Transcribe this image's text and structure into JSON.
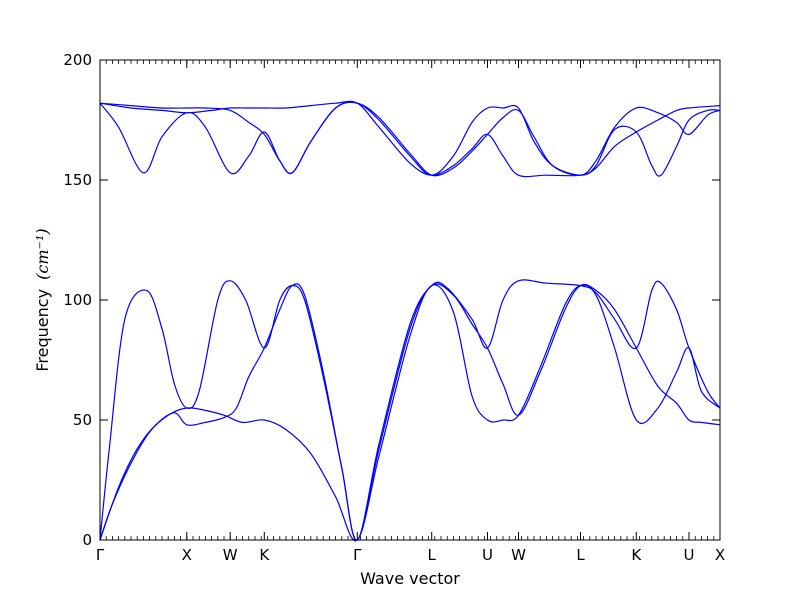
{
  "chart_data": {
    "type": "line",
    "title": "",
    "xlabel": "Wave vector",
    "ylabel": "Frequency",
    "ylabel_unit": "(cm⁻¹)",
    "ylim": [
      0,
      200
    ],
    "y_ticks": [
      0,
      50,
      100,
      150,
      200
    ],
    "x_range": [
      0,
      1
    ],
    "grid": false,
    "legend": "none",
    "line_color": "#0000ff",
    "high_symmetry_points": [
      {
        "label": "Γ",
        "x": 0.0
      },
      {
        "label": "X",
        "x": 0.14
      },
      {
        "label": "W",
        "x": 0.21
      },
      {
        "label": "K",
        "x": 0.265
      },
      {
        "label": "Γ",
        "x": 0.415
      },
      {
        "label": "L",
        "x": 0.535
      },
      {
        "label": "U",
        "x": 0.625
      },
      {
        "label": "W",
        "x": 0.675
      },
      {
        "label": "L",
        "x": 0.775
      },
      {
        "label": "K",
        "x": 0.865
      },
      {
        "label": "U",
        "x": 0.95
      },
      {
        "label": "X",
        "x": 1.0
      }
    ],
    "minor_tick_count": 100,
    "series": [
      {
        "values": [
          [
            0,
            0
          ],
          [
            0.02,
            15
          ],
          [
            0.05,
            32
          ],
          [
            0.08,
            45
          ],
          [
            0.11,
            52
          ],
          [
            0.14,
            55
          ],
          [
            0.17,
            54
          ],
          [
            0.2,
            52
          ],
          [
            0.23,
            49
          ],
          [
            0.265,
            50
          ],
          [
            0.3,
            46
          ],
          [
            0.34,
            36
          ],
          [
            0.38,
            18
          ],
          [
            0.415,
            0
          ],
          [
            0.45,
            35
          ],
          [
            0.5,
            85
          ],
          [
            0.535,
            106
          ],
          [
            0.57,
            95
          ],
          [
            0.6,
            60
          ],
          [
            0.625,
            50
          ],
          [
            0.65,
            50
          ],
          [
            0.675,
            52
          ],
          [
            0.71,
            72
          ],
          [
            0.75,
            98
          ],
          [
            0.775,
            106
          ],
          [
            0.8,
            102
          ],
          [
            0.83,
            80
          ],
          [
            0.865,
            50
          ],
          [
            0.9,
            55
          ],
          [
            0.93,
            70
          ],
          [
            0.95,
            80
          ],
          [
            0.97,
            62
          ],
          [
            1.0,
            55
          ]
        ]
      },
      {
        "values": [
          [
            0,
            0
          ],
          [
            0.03,
            22
          ],
          [
            0.06,
            38
          ],
          [
            0.09,
            48
          ],
          [
            0.12,
            53
          ],
          [
            0.14,
            48
          ],
          [
            0.17,
            49
          ],
          [
            0.2,
            51
          ],
          [
            0.22,
            55
          ],
          [
            0.24,
            68
          ],
          [
            0.265,
            80
          ],
          [
            0.29,
            96
          ],
          [
            0.31,
            106
          ],
          [
            0.33,
            102
          ],
          [
            0.36,
            70
          ],
          [
            0.39,
            30
          ],
          [
            0.415,
            0
          ],
          [
            0.45,
            38
          ],
          [
            0.5,
            88
          ],
          [
            0.535,
            106
          ],
          [
            0.57,
            102
          ],
          [
            0.6,
            90
          ],
          [
            0.625,
            80
          ],
          [
            0.65,
            65
          ],
          [
            0.675,
            52
          ],
          [
            0.71,
            70
          ],
          [
            0.75,
            96
          ],
          [
            0.775,
            106
          ],
          [
            0.8,
            104
          ],
          [
            0.83,
            96
          ],
          [
            0.865,
            80
          ],
          [
            0.9,
            64
          ],
          [
            0.93,
            57
          ],
          [
            0.95,
            50
          ],
          [
            0.97,
            49
          ],
          [
            1.0,
            48
          ]
        ]
      },
      {
        "values": [
          [
            0,
            0
          ],
          [
            0.015,
            38
          ],
          [
            0.04,
            92
          ],
          [
            0.075,
            104
          ],
          [
            0.1,
            88
          ],
          [
            0.12,
            65
          ],
          [
            0.14,
            55
          ],
          [
            0.16,
            62
          ],
          [
            0.19,
            100
          ],
          [
            0.21,
            108
          ],
          [
            0.235,
            100
          ],
          [
            0.265,
            80
          ],
          [
            0.29,
            100
          ],
          [
            0.31,
            106
          ],
          [
            0.33,
            100
          ],
          [
            0.36,
            68
          ],
          [
            0.39,
            30
          ],
          [
            0.415,
            0
          ],
          [
            0.45,
            40
          ],
          [
            0.5,
            90
          ],
          [
            0.535,
            106
          ],
          [
            0.56,
            105
          ],
          [
            0.6,
            92
          ],
          [
            0.625,
            80
          ],
          [
            0.65,
            100
          ],
          [
            0.675,
            108
          ],
          [
            0.72,
            107
          ],
          [
            0.775,
            106
          ],
          [
            0.8,
            103
          ],
          [
            0.83,
            92
          ],
          [
            0.865,
            80
          ],
          [
            0.89,
            104
          ],
          [
            0.905,
            107
          ],
          [
            0.93,
            96
          ],
          [
            0.95,
            80
          ],
          [
            0.98,
            62
          ],
          [
            1.0,
            55
          ]
        ]
      },
      {
        "values": [
          [
            0,
            182
          ],
          [
            0.05,
            180
          ],
          [
            0.1,
            179
          ],
          [
            0.14,
            178
          ],
          [
            0.18,
            179
          ],
          [
            0.21,
            180
          ],
          [
            0.24,
            180
          ],
          [
            0.265,
            180
          ],
          [
            0.3,
            180
          ],
          [
            0.34,
            181
          ],
          [
            0.38,
            182
          ],
          [
            0.415,
            182
          ],
          [
            0.45,
            172
          ],
          [
            0.5,
            157
          ],
          [
            0.535,
            152
          ],
          [
            0.57,
            156
          ],
          [
            0.6,
            163
          ],
          [
            0.625,
            169
          ],
          [
            0.65,
            160
          ],
          [
            0.675,
            152
          ],
          [
            0.72,
            152
          ],
          [
            0.775,
            152
          ],
          [
            0.8,
            155
          ],
          [
            0.83,
            164
          ],
          [
            0.865,
            170
          ],
          [
            0.9,
            175
          ],
          [
            0.93,
            179
          ],
          [
            0.95,
            180
          ],
          [
            1.0,
            181
          ]
        ]
      },
      {
        "values": [
          [
            0,
            182
          ],
          [
            0.03,
            172
          ],
          [
            0.07,
            153
          ],
          [
            0.1,
            168
          ],
          [
            0.14,
            178
          ],
          [
            0.17,
            172
          ],
          [
            0.21,
            153
          ],
          [
            0.24,
            160
          ],
          [
            0.265,
            170
          ],
          [
            0.29,
            158
          ],
          [
            0.31,
            153
          ],
          [
            0.34,
            166
          ],
          [
            0.38,
            180
          ],
          [
            0.415,
            182
          ],
          [
            0.45,
            175
          ],
          [
            0.5,
            160
          ],
          [
            0.535,
            152
          ],
          [
            0.57,
            160
          ],
          [
            0.6,
            174
          ],
          [
            0.625,
            180
          ],
          [
            0.65,
            180
          ],
          [
            0.675,
            180
          ],
          [
            0.7,
            166
          ],
          [
            0.73,
            156
          ],
          [
            0.775,
            152
          ],
          [
            0.8,
            156
          ],
          [
            0.83,
            171
          ],
          [
            0.865,
            170
          ],
          [
            0.89,
            156
          ],
          [
            0.905,
            152
          ],
          [
            0.93,
            164
          ],
          [
            0.95,
            175
          ],
          [
            0.98,
            179
          ],
          [
            1.0,
            179
          ]
        ]
      },
      {
        "values": [
          [
            0,
            182
          ],
          [
            0.05,
            181
          ],
          [
            0.1,
            180
          ],
          [
            0.14,
            180
          ],
          [
            0.17,
            180
          ],
          [
            0.21,
            179
          ],
          [
            0.24,
            174
          ],
          [
            0.265,
            169
          ],
          [
            0.29,
            158
          ],
          [
            0.31,
            153
          ],
          [
            0.34,
            166
          ],
          [
            0.38,
            180
          ],
          [
            0.415,
            182
          ],
          [
            0.45,
            176
          ],
          [
            0.5,
            161
          ],
          [
            0.535,
            152
          ],
          [
            0.57,
            155
          ],
          [
            0.6,
            162
          ],
          [
            0.625,
            169
          ],
          [
            0.65,
            176
          ],
          [
            0.675,
            179
          ],
          [
            0.7,
            168
          ],
          [
            0.73,
            156
          ],
          [
            0.775,
            152
          ],
          [
            0.8,
            158
          ],
          [
            0.83,
            172
          ],
          [
            0.865,
            180
          ],
          [
            0.9,
            178
          ],
          [
            0.93,
            174
          ],
          [
            0.95,
            169
          ],
          [
            0.98,
            177
          ],
          [
            1.0,
            179
          ]
        ]
      }
    ]
  }
}
